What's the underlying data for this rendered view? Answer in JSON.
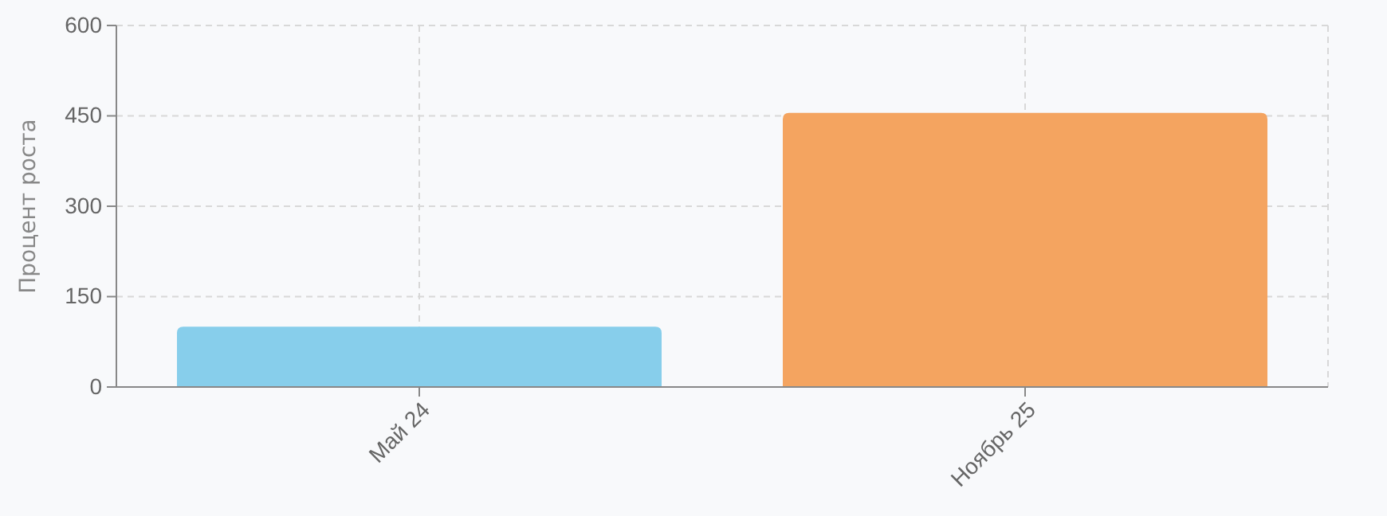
{
  "chart_data": {
    "type": "bar",
    "ylabel": "Процент роста",
    "categories": [
      "Май 24",
      "Ноябрь 25"
    ],
    "values": [
      100,
      455
    ],
    "colors": [
      "#87ceeb",
      "#f4a460"
    ],
    "ylim": [
      0,
      600
    ],
    "yticks": [
      0,
      150,
      300,
      450,
      600
    ],
    "grid": true
  }
}
